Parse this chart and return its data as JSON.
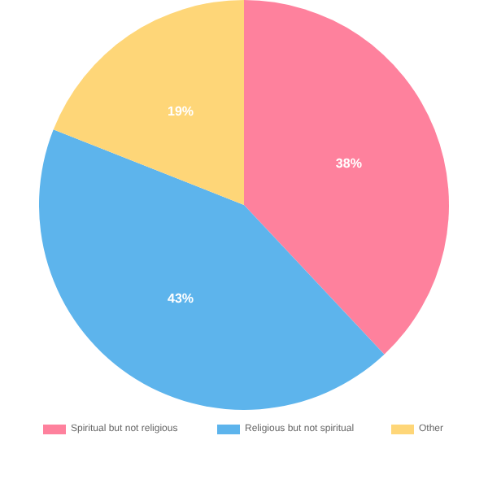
{
  "chart_data": {
    "type": "pie",
    "categories": [
      "Spiritual but not religious",
      "Religious but not spiritual",
      "Other"
    ],
    "values": [
      38,
      43,
      19
    ],
    "colors": [
      "#fe819d",
      "#5db4ec",
      "#fed678"
    ],
    "value_labels": [
      "38%",
      "43%",
      "19%"
    ],
    "legend": "bottom"
  }
}
